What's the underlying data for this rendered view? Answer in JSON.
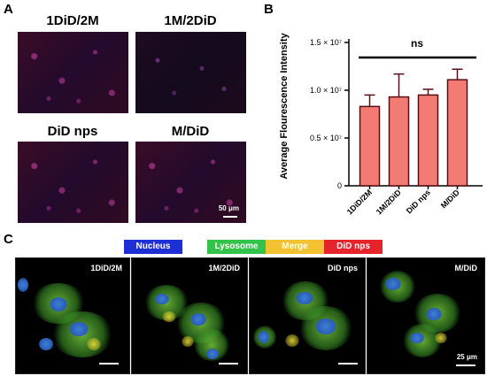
{
  "panels": {
    "a": "A",
    "b": "B",
    "c": "C"
  },
  "micrographs": [
    {
      "label": "1DiD/2M"
    },
    {
      "label": "1M/2DiD"
    },
    {
      "label": "DiD nps"
    },
    {
      "label": "M/DiD"
    }
  ],
  "micrograph_scalebar": "50 μm",
  "legend": [
    {
      "label": "Nucleus",
      "color": "#1f2fd6"
    },
    {
      "label": "Lysosome",
      "color": "#33c24a"
    },
    {
      "label": "Merge",
      "color": "#f2c230"
    },
    {
      "label": "DiD nps",
      "color": "#e4232a"
    }
  ],
  "confocal": [
    {
      "label": "1DiD/2M"
    },
    {
      "label": "1M/2DiD"
    },
    {
      "label": "DiD nps"
    },
    {
      "label": "M/DiD"
    }
  ],
  "confocal_scalebar": "25 μm",
  "chart_data": {
    "type": "bar",
    "categories": [
      "1DiD/2M",
      "1M/2DiD",
      "DiD nps",
      "M/DiD"
    ],
    "values": [
      8.3,
      9.3,
      9.5,
      11.1
    ],
    "errors": [
      1.2,
      2.4,
      0.6,
      1.1
    ],
    "value_scale": "× 10^6",
    "ylabel": "Average Flourescence Intensity",
    "yticks": [
      "0",
      "0.5 × 10⁷",
      "1.0 × 10⁷",
      "1.5 × 10⁷"
    ],
    "ylim": [
      0,
      15
    ],
    "significance": "ns",
    "bar_color": "#f27c74",
    "edge_color": "#5a0f14"
  }
}
